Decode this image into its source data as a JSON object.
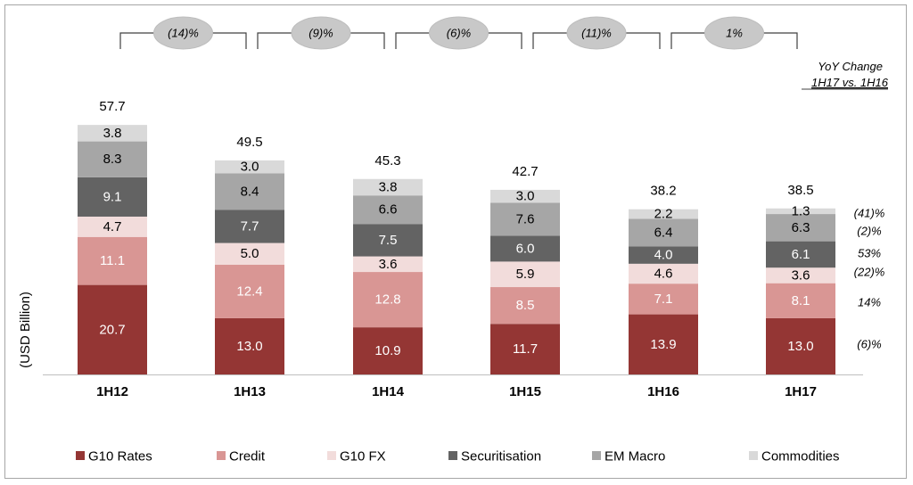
{
  "chart_data": {
    "type": "stacked-bar",
    "ylabel": "(USD Billion)",
    "categories": [
      "1H12",
      "1H13",
      "1H14",
      "1H15",
      "1H16",
      "1H17"
    ],
    "series": [
      {
        "name": "G10 Rates",
        "color": "#943634",
        "label_color": "#ffffff",
        "values": [
          20.7,
          13.0,
          10.9,
          11.7,
          13.9,
          13.0
        ]
      },
      {
        "name": "Credit",
        "color": "#d99694",
        "label_color": "#ffffff",
        "values": [
          11.1,
          12.4,
          12.8,
          8.5,
          7.1,
          8.1
        ]
      },
      {
        "name": "G10 FX",
        "color": "#f2dcdb",
        "label_color": "#000000",
        "values": [
          4.7,
          5.0,
          3.6,
          5.9,
          4.6,
          3.6
        ]
      },
      {
        "name": "Securitisation",
        "color": "#636363",
        "label_color": "#ffffff",
        "values": [
          9.1,
          7.7,
          7.5,
          6.0,
          4.0,
          6.1
        ]
      },
      {
        "name": "EM Macro",
        "color": "#a6a6a6",
        "label_color": "#000000",
        "values": [
          8.3,
          8.4,
          6.6,
          7.6,
          6.4,
          6.3
        ]
      },
      {
        "name": "Commodities",
        "color": "#d9d9d9",
        "label_color": "#000000",
        "values": [
          3.8,
          3.0,
          3.8,
          3.0,
          2.2,
          1.3
        ]
      }
    ],
    "totals": [
      "57.7",
      "49.5",
      "45.3",
      "42.7",
      "38.2",
      "38.5"
    ],
    "period_changes": [
      "(14)%",
      "(9)%",
      "(6)%",
      "(11)%",
      "1%"
    ],
    "yoy_header": {
      "line1": "YoY Change",
      "line2": "1H17 vs. 1H16"
    },
    "yoy_by_series": [
      "(6)%",
      "14%",
      "(22)%",
      "53%",
      "(2)%",
      "(41)%"
    ],
    "legend_position": "bottom"
  }
}
